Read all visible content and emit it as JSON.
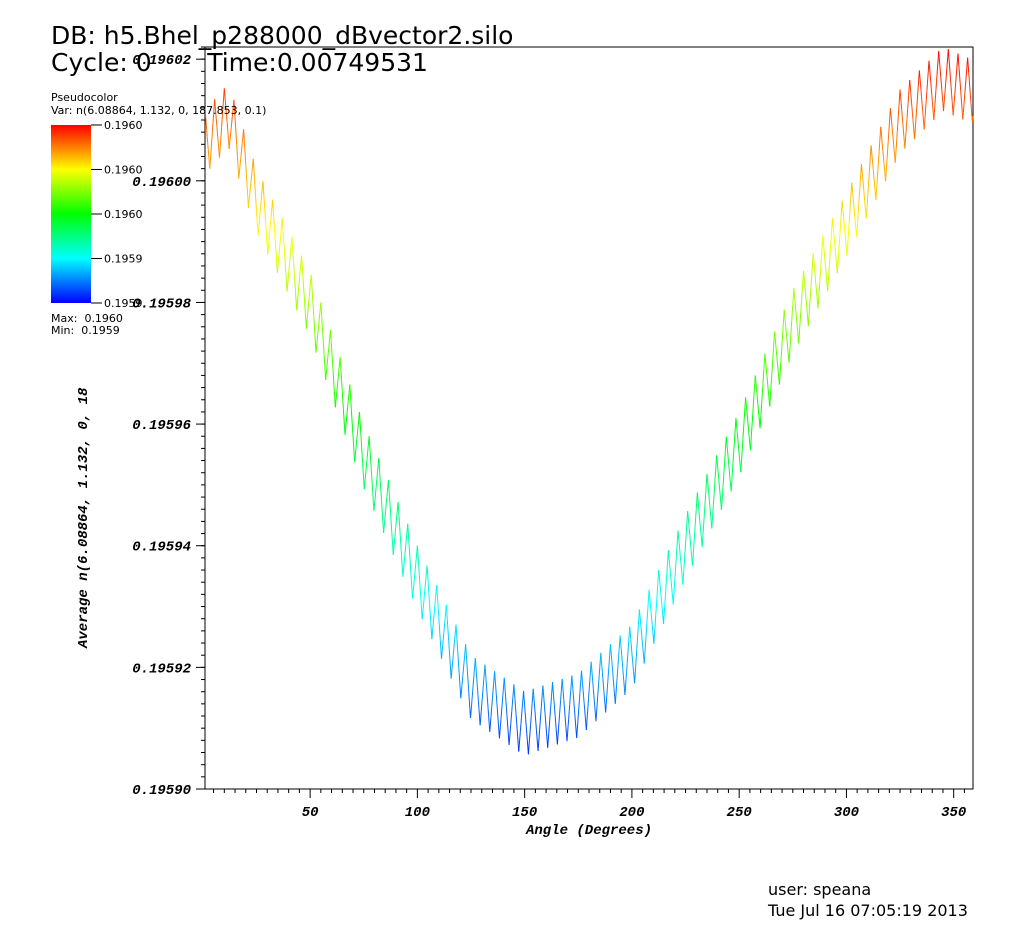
{
  "header": {
    "db_line": "DB: h5.Bhel_p288000_dBvector2.silo",
    "cycle_line": "Cycle: 0       Time:0.00749531"
  },
  "legend": {
    "title": "Pseudocolor",
    "var": "Var: n(6.08864, 1.132, 0, 187.853, 0.1)",
    "tick_labels": [
      "0.1960",
      "0.1960",
      "0.1960",
      "0.1959",
      "0.1959"
    ],
    "max_label": "Max:  0.1960",
    "min_label": "Min:  0.1959",
    "colors": [
      "#ff0000",
      "#ffff00",
      "#00ff00",
      "#00ffff",
      "#0000ff"
    ]
  },
  "footer": {
    "user": "user: speana",
    "date": "Tue Jul 16 07:05:19 2013"
  },
  "chart_data": {
    "type": "line",
    "xlabel": "Angle (Degrees)",
    "ylabel": "Average n(6.08864, 1.132, 0, 18",
    "xlim": [
      1,
      359
    ],
    "ylim": [
      0.1959,
      0.196022
    ],
    "x_ticks": [
      50,
      100,
      150,
      200,
      250,
      300,
      350
    ],
    "y_ticks": [
      0.1959,
      0.19592,
      0.19594,
      0.19596,
      0.19598,
      0.196,
      0.19602
    ],
    "y_tick_labels": [
      "0.19590",
      "0.19592",
      "0.19594",
      "0.19596",
      "0.19598",
      "0.19600",
      "0.19602"
    ],
    "series": [
      {
        "envelope_upper": [
          [
            2,
            0.196012
          ],
          [
            12,
            0.196016
          ],
          [
            25,
            0.196002
          ],
          [
            50,
            0.195985
          ],
          [
            75,
            0.19596
          ],
          [
            100,
            0.19594
          ],
          [
            125,
            0.195922
          ],
          [
            150,
            0.195916
          ],
          [
            175,
            0.195919
          ],
          [
            200,
            0.195927
          ],
          [
            225,
            0.195945
          ],
          [
            250,
            0.195962
          ],
          [
            275,
            0.195982
          ],
          [
            300,
            0.195998
          ],
          [
            325,
            0.196015
          ],
          [
            345,
            0.196022
          ],
          [
            358,
            0.19602
          ]
        ],
        "oscillation_period_deg": 4.5,
        "oscillation_amplitude": 1.05e-05
      }
    ]
  }
}
